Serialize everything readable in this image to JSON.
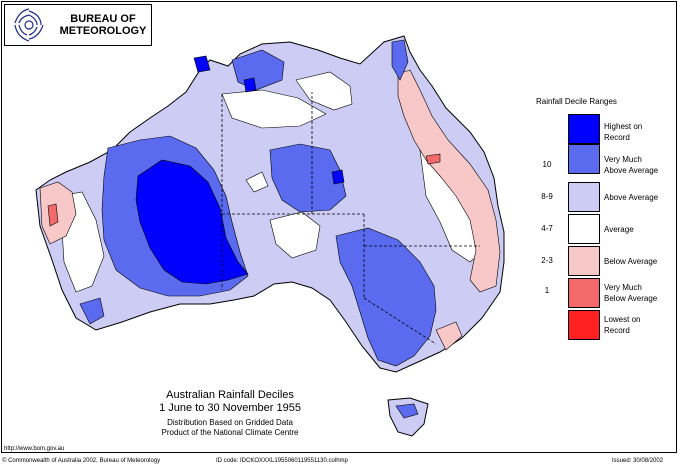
{
  "logo": {
    "line1": "BUREAU OF",
    "line2": "METEOROLOGY"
  },
  "legend": {
    "title": "Rainfall Decile Ranges",
    "rows": [
      {
        "decile": "",
        "label1": "Highest on",
        "label2": "Record",
        "color": "#0000ff"
      },
      {
        "decile": "10",
        "label1": "Very Much",
        "label2": "Above Average",
        "color": "#5a6bf0"
      },
      {
        "decile": "8-9",
        "label1": "Above Average",
        "label2": "",
        "color": "#ccccf4"
      },
      {
        "decile": "4-7",
        "label1": "Average",
        "label2": "",
        "color": "#ffffff"
      },
      {
        "decile": "2-3",
        "label1": "Below Average",
        "label2": "",
        "color": "#f8c8c8"
      },
      {
        "decile": "1",
        "label1": "Very Much",
        "label2": "Below Average",
        "color": "#f26a6a"
      },
      {
        "decile": "",
        "label1": "Lowest on",
        "label2": "Record",
        "color": "#ff2020"
      }
    ]
  },
  "caption": {
    "title1": "Australian Rainfall Deciles",
    "title2": "1 June to 30 November 1955",
    "sub1": "Distribution Based on Gridded Data",
    "sub2": "Product of the National Climate Centre"
  },
  "footer": {
    "url": "http://www.bom.gov.au",
    "left": "© Commonwealth of Australia 2002, Bureau of Meteorology",
    "mid": "ID code: IDCKOXXXL1955060119551130.colhmp",
    "right": "Issued: 30/08/2002"
  },
  "colors": {
    "highest": "#0000ff",
    "very_much_above": "#5a6bf0",
    "above": "#ccccf4",
    "average": "#ffffff",
    "below": "#f8c8c8",
    "very_much_below": "#f26a6a",
    "lowest": "#ff2020"
  }
}
